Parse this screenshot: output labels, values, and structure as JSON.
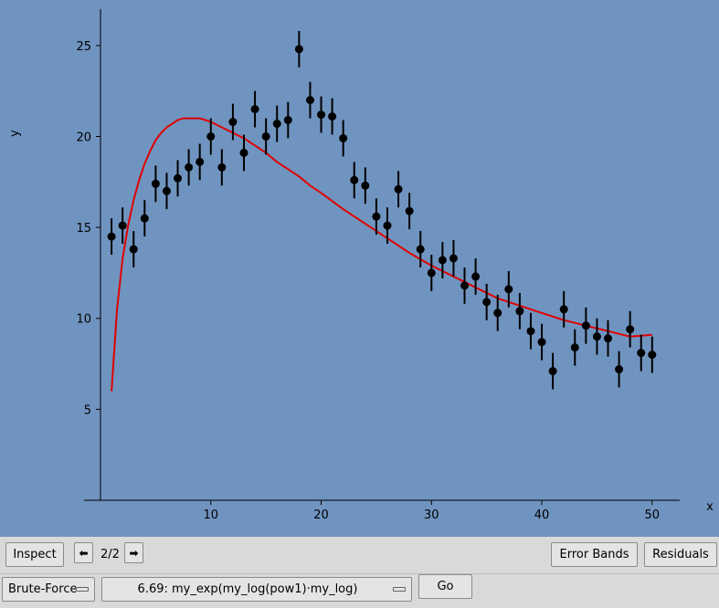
{
  "chart_data": {
    "type": "scatter",
    "xlabel": "x",
    "ylabel": "y",
    "xlim": [
      0,
      52.5
    ],
    "ylim": [
      0,
      27
    ],
    "x_ticks": [
      10,
      20,
      30,
      40,
      50
    ],
    "y_ticks": [
      5,
      10,
      15,
      20,
      25
    ],
    "series": [
      {
        "kind": "points_with_error_bars",
        "color": "#000000",
        "points": [
          {
            "x": 1,
            "y": 14.5,
            "err": 1.0
          },
          {
            "x": 2,
            "y": 15.1,
            "err": 1.0
          },
          {
            "x": 3,
            "y": 13.8,
            "err": 1.0
          },
          {
            "x": 4,
            "y": 15.5,
            "err": 1.0
          },
          {
            "x": 5,
            "y": 17.4,
            "err": 1.0
          },
          {
            "x": 6,
            "y": 17.0,
            "err": 1.0
          },
          {
            "x": 7,
            "y": 17.7,
            "err": 1.0
          },
          {
            "x": 8,
            "y": 18.3,
            "err": 1.0
          },
          {
            "x": 9,
            "y": 18.6,
            "err": 1.0
          },
          {
            "x": 10,
            "y": 20.0,
            "err": 1.0
          },
          {
            "x": 11,
            "y": 18.3,
            "err": 1.0
          },
          {
            "x": 12,
            "y": 20.8,
            "err": 1.0
          },
          {
            "x": 13,
            "y": 19.1,
            "err": 1.0
          },
          {
            "x": 14,
            "y": 21.5,
            "err": 1.0
          },
          {
            "x": 15,
            "y": 20.0,
            "err": 1.0
          },
          {
            "x": 16,
            "y": 20.7,
            "err": 1.0
          },
          {
            "x": 17,
            "y": 20.9,
            "err": 1.0
          },
          {
            "x": 18,
            "y": 24.8,
            "err": 1.0
          },
          {
            "x": 19,
            "y": 22.0,
            "err": 1.0
          },
          {
            "x": 20,
            "y": 21.2,
            "err": 1.0
          },
          {
            "x": 21,
            "y": 21.1,
            "err": 1.0
          },
          {
            "x": 22,
            "y": 19.9,
            "err": 1.0
          },
          {
            "x": 23,
            "y": 17.6,
            "err": 1.0
          },
          {
            "x": 24,
            "y": 17.3,
            "err": 1.0
          },
          {
            "x": 25,
            "y": 15.6,
            "err": 1.0
          },
          {
            "x": 26,
            "y": 15.1,
            "err": 1.0
          },
          {
            "x": 27,
            "y": 17.1,
            "err": 1.0
          },
          {
            "x": 28,
            "y": 15.9,
            "err": 1.0
          },
          {
            "x": 29,
            "y": 13.8,
            "err": 1.0
          },
          {
            "x": 30,
            "y": 12.5,
            "err": 1.0
          },
          {
            "x": 31,
            "y": 13.2,
            "err": 1.0
          },
          {
            "x": 32,
            "y": 13.3,
            "err": 1.0
          },
          {
            "x": 33,
            "y": 11.8,
            "err": 1.0
          },
          {
            "x": 34,
            "y": 12.3,
            "err": 1.0
          },
          {
            "x": 35,
            "y": 10.9,
            "err": 1.0
          },
          {
            "x": 36,
            "y": 10.3,
            "err": 1.0
          },
          {
            "x": 37,
            "y": 11.6,
            "err": 1.0
          },
          {
            "x": 38,
            "y": 10.4,
            "err": 1.0
          },
          {
            "x": 39,
            "y": 9.3,
            "err": 1.0
          },
          {
            "x": 40,
            "y": 8.7,
            "err": 1.0
          },
          {
            "x": 41,
            "y": 7.1,
            "err": 1.0
          },
          {
            "x": 42,
            "y": 10.5,
            "err": 1.0
          },
          {
            "x": 43,
            "y": 8.4,
            "err": 1.0
          },
          {
            "x": 44,
            "y": 9.6,
            "err": 1.0
          },
          {
            "x": 45,
            "y": 9.0,
            "err": 1.0
          },
          {
            "x": 46,
            "y": 8.9,
            "err": 1.0
          },
          {
            "x": 47,
            "y": 7.2,
            "err": 1.0
          },
          {
            "x": 48,
            "y": 9.4,
            "err": 1.0
          },
          {
            "x": 49,
            "y": 8.1,
            "err": 1.0
          },
          {
            "x": 50,
            "y": 8.0,
            "err": 1.0
          }
        ]
      },
      {
        "kind": "fit_curve",
        "color": "#e00000",
        "x": [
          1,
          1.5,
          2,
          2.5,
          3,
          3.5,
          4,
          4.5,
          5,
          5.5,
          6,
          6.5,
          7,
          7.5,
          8,
          8.5,
          9,
          9.5,
          10,
          11,
          12,
          13,
          14,
          15,
          16,
          17,
          18,
          19,
          20,
          22,
          24,
          26,
          28,
          30,
          32,
          34,
          36,
          38,
          40,
          42,
          44,
          46,
          48,
          50
        ],
        "y": [
          6.0,
          10.5,
          13.3,
          15.1,
          16.5,
          17.6,
          18.5,
          19.2,
          19.8,
          20.2,
          20.5,
          20.7,
          20.9,
          21.0,
          21.0,
          21.0,
          21.0,
          20.9,
          20.8,
          20.5,
          20.2,
          19.9,
          19.5,
          19.1,
          18.6,
          18.2,
          17.8,
          17.3,
          16.9,
          16.0,
          15.2,
          14.4,
          13.6,
          12.9,
          12.3,
          11.7,
          11.1,
          10.7,
          10.3,
          9.9,
          9.6,
          9.3,
          9.0,
          9.1
        ]
      }
    ]
  },
  "toolbar": {
    "inspect_label": "Inspect",
    "prev_icon": "⬅",
    "next_icon": "➡",
    "page_indicator": "2/2",
    "error_bands_label": "Error Bands",
    "residuals_label": "Residuals"
  },
  "controls": {
    "method_selected": "Brute-Force",
    "model_selected": "6.69: my_exp(my_log(pow1)·my_log)",
    "go_label": "Go"
  }
}
